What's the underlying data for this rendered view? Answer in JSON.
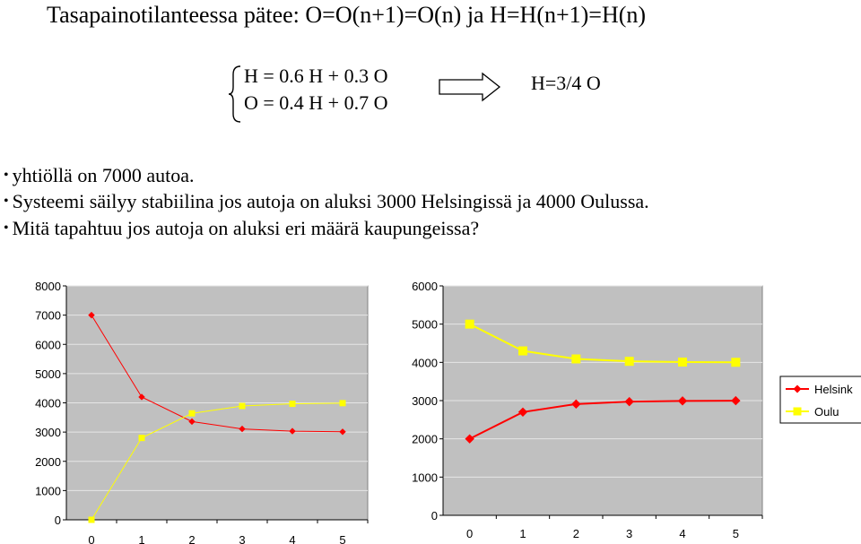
{
  "slide": {
    "title": "Tasapainotilanteessa pätee: O=O(n+1)=O(n) ja H=H(n+1)=H(n)",
    "equations": [
      "H = 0.6 H + 0.3 O",
      "O = 0.4 H + 0.7 O"
    ],
    "result": "H=3/4 O",
    "bullets": [
      "yhtiöllä on 7000 autoa.",
      "Systeemi säilyy stabiilina jos autoja on aluksi 3000 Helsingissä ja 4000 Oulussa.",
      "Mitä tapahtuu jos autoja on aluksi eri määrä kaupungeissa?"
    ]
  },
  "chart_data": [
    {
      "type": "line",
      "title": "",
      "xlabel": "",
      "ylabel": "",
      "categories": [
        "0",
        "1",
        "2",
        "3",
        "4",
        "5"
      ],
      "ylim": [
        0,
        8000
      ],
      "yticks": [
        "0",
        "1000",
        "2000",
        "3000",
        "4000",
        "5000",
        "6000",
        "7000",
        "8000"
      ],
      "series": [
        {
          "name": "Helsinki",
          "color": "#ff0000",
          "marker": "diamond",
          "values": [
            7000,
            4200,
            3360,
            3108,
            3032,
            3010
          ]
        },
        {
          "name": "Oulu",
          "color": "#ffff00",
          "marker": "square",
          "values": [
            0,
            2800,
            3640,
            3892,
            3968,
            3990
          ]
        }
      ]
    },
    {
      "type": "line",
      "title": "",
      "xlabel": "",
      "ylabel": "",
      "categories": [
        "0",
        "1",
        "2",
        "3",
        "4",
        "5"
      ],
      "ylim": [
        0,
        6000
      ],
      "yticks": [
        "0",
        "1000",
        "2000",
        "3000",
        "4000",
        "5000",
        "6000"
      ],
      "series": [
        {
          "name": "Helsinki",
          "color": "#ff0000",
          "marker": "diamond",
          "values": [
            2000,
            2700,
            2910,
            2973,
            2992,
            2998
          ]
        },
        {
          "name": "Oulu",
          "color": "#ffff00",
          "marker": "square",
          "values": [
            5000,
            4300,
            4090,
            4027,
            4008,
            4002
          ]
        }
      ],
      "legend": {
        "entries": [
          "Helsink",
          "Oulu"
        ],
        "placement": "right"
      }
    }
  ]
}
